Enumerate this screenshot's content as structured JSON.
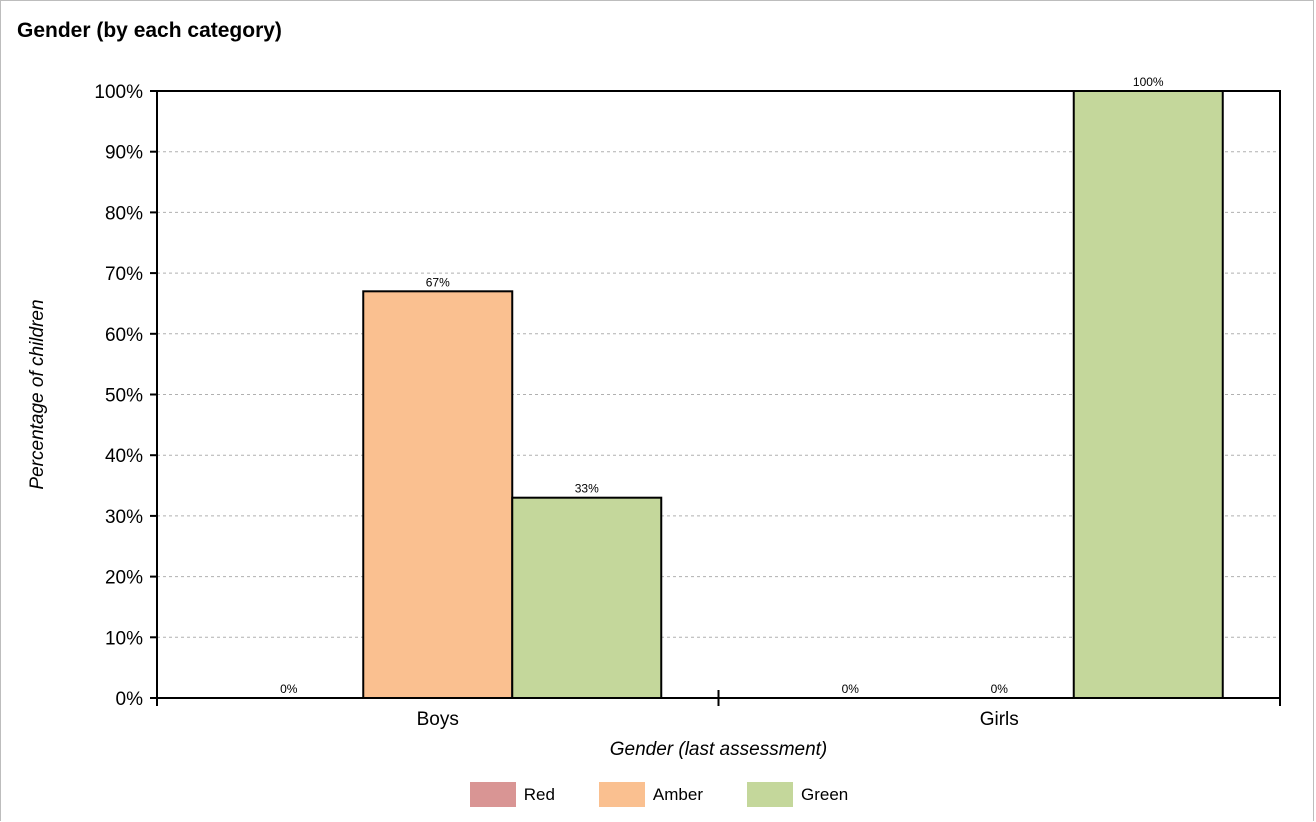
{
  "chart_data": {
    "type": "bar",
    "title": "Gender (by each category)",
    "xlabel": "Gender (last assessment)",
    "ylabel": "Percentage of children",
    "categories": [
      "Boys",
      "Girls"
    ],
    "series": [
      {
        "name": "Red",
        "color": "#d99594",
        "values": [
          0,
          0
        ],
        "labels": [
          "0%",
          "0%"
        ]
      },
      {
        "name": "Amber",
        "color": "#fac090",
        "values": [
          67,
          0
        ],
        "labels": [
          "67%",
          "0%"
        ]
      },
      {
        "name": "Green",
        "color": "#c4d79b",
        "values": [
          33,
          100
        ],
        "labels": [
          "33%",
          "100%"
        ]
      }
    ],
    "ylim": [
      0,
      100
    ],
    "yticks": [
      "0%",
      "10%",
      "20%",
      "30%",
      "40%",
      "50%",
      "60%",
      "70%",
      "80%",
      "90%",
      "100%"
    ],
    "grid": true,
    "legend_position": "bottom"
  }
}
